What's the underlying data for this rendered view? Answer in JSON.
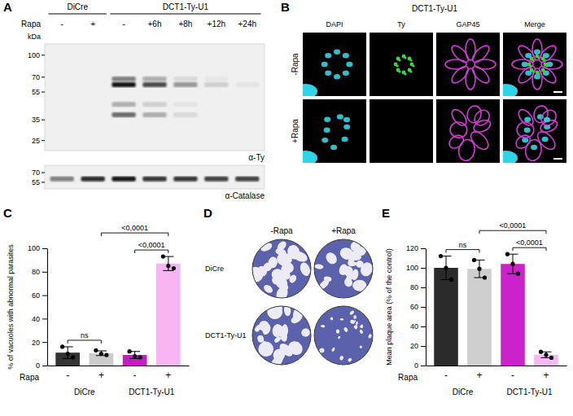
{
  "panels": {
    "A": {
      "letter": "A",
      "groups": [
        {
          "label": "DiCre",
          "lanes": [
            0,
            1
          ]
        },
        {
          "label": "DCT1-Ty-U1",
          "lanes": [
            2,
            6
          ]
        }
      ],
      "row_label": "Rapa",
      "lanes": [
        "-",
        "+",
        "-",
        "+6h",
        "+8h",
        "+12h",
        "+24h"
      ],
      "unit": "kDa",
      "blots": [
        {
          "label": "α-Ty",
          "markers": [
            100,
            70,
            55,
            35,
            25
          ],
          "bands": [
            {
              "kda": 68,
              "intensity": [
                0,
                0,
                0.5,
                0.3,
                0.1,
                0.04,
                0
              ]
            },
            {
              "kda": 62,
              "intensity": [
                0,
                0,
                1,
                0.75,
                0.4,
                0.15,
                0.05
              ]
            },
            {
              "kda": 45,
              "intensity": [
                0,
                0,
                0.3,
                0.15,
                0.05,
                0,
                0
              ]
            },
            {
              "kda": 38,
              "intensity": [
                0,
                0,
                0.6,
                0.3,
                0.1,
                0,
                0
              ]
            }
          ]
        },
        {
          "label": "α-Catalase",
          "markers": [
            70,
            55
          ],
          "bands": [
            {
              "kda": 60,
              "intensity": [
                0.5,
                0.9,
                1,
                0.85,
                0.85,
                0.8,
                0.8
              ]
            }
          ]
        }
      ]
    },
    "B": {
      "letter": "B",
      "title": "DCT1-Ty-U1",
      "columns": [
        "DAPI",
        "Ty",
        "GAP45",
        "Merge"
      ],
      "rows": [
        "-Rapa",
        "+Rapa"
      ]
    },
    "D": {
      "letter": "D",
      "columns": [
        "-Rapa",
        "+Rapa"
      ],
      "rows": [
        "DiCre",
        "DCT1-Ty-U1"
      ]
    }
  },
  "chart_data": [
    {
      "panel": "C",
      "type": "bar",
      "ylabel": "% of vacuoles with abnormal parasites",
      "xlabel": "Rapa",
      "categories": [
        "-",
        "+",
        "-",
        "+"
      ],
      "groups": [
        {
          "label": "DiCre",
          "categories": [
            0,
            1
          ]
        },
        {
          "label": "DCT1-Ty-U1",
          "categories": [
            2,
            3
          ]
        }
      ],
      "values": [
        11,
        10.5,
        9,
        87
      ],
      "errors": [
        5,
        2,
        3,
        6
      ],
      "points": [
        [
          16,
          10,
          7
        ],
        [
          13,
          10,
          9
        ],
        [
          12,
          8,
          7
        ],
        [
          93,
          85,
          83
        ]
      ],
      "colors": [
        "#333333",
        "#cccccc",
        "#c21fc2",
        "#f7b5f3"
      ],
      "ylim": [
        0,
        100
      ],
      "yticks": [
        0,
        20,
        40,
        60,
        80,
        100
      ],
      "comparisons": [
        {
          "between": [
            0,
            1
          ],
          "label": "ns"
        },
        {
          "between": [
            2,
            3
          ],
          "label": "<0,0001"
        },
        {
          "between": [
            1,
            3
          ],
          "label": "<0,0001"
        }
      ]
    },
    {
      "panel": "E",
      "type": "bar",
      "ylabel": "Mean plaque area (% of the control)",
      "xlabel": "Rapa",
      "categories": [
        "-",
        "+",
        "-",
        "+"
      ],
      "groups": [
        {
          "label": "DiCre",
          "categories": [
            0,
            1
          ]
        },
        {
          "label": "DCT1-Ty-U1",
          "categories": [
            2,
            3
          ]
        }
      ],
      "values": [
        100,
        99,
        104,
        11
      ],
      "errors": [
        12,
        9,
        10,
        3
      ],
      "points": [
        [
          112,
          100,
          88
        ],
        [
          108,
          99,
          90
        ],
        [
          114,
          104,
          94
        ],
        [
          14,
          11,
          8
        ]
      ],
      "colors": [
        "#2b2b2b",
        "#cfcfcf",
        "#cc22cc",
        "#f5b8f2"
      ],
      "ylim": [
        0,
        120
      ],
      "yticks": [
        0,
        20,
        40,
        60,
        80,
        100,
        120
      ],
      "comparisons": [
        {
          "between": [
            0,
            1
          ],
          "label": "ns"
        },
        {
          "between": [
            2,
            3
          ],
          "label": "<0,0001"
        },
        {
          "between": [
            1,
            3
          ],
          "label": "<0,0001"
        }
      ]
    }
  ]
}
